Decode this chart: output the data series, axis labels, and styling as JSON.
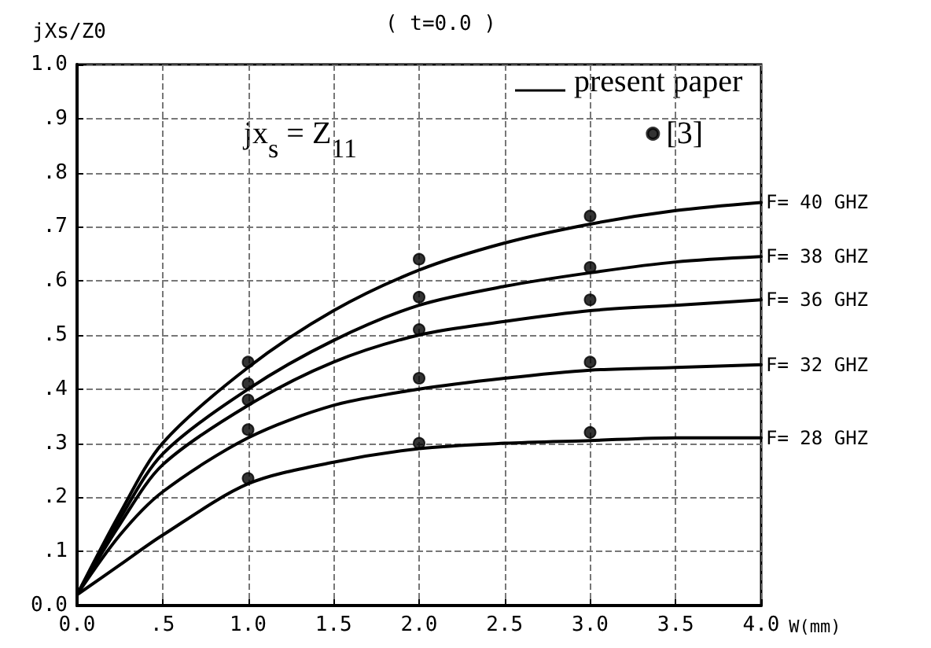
{
  "chart_data": {
    "type": "line",
    "title": "( t=0.0 )",
    "xlabel": "W(mm)",
    "ylabel": "jXs/Z0",
    "annotations": [
      "present paper",
      "jx$_{s}$ = Z$_{11}$"
    ],
    "x": [
      0,
      0.25,
      0.5,
      1,
      1.5,
      2,
      2.5,
      3,
      3.5,
      4
    ],
    "xlim": [
      0,
      4
    ],
    "ylim": [
      0,
      1
    ],
    "xticks": [
      {
        "value": 0,
        "label": "0.0"
      },
      {
        "value": 0.5,
        "label": ".5"
      },
      {
        "value": 1,
        "label": "1.0"
      },
      {
        "value": 1.5,
        "label": "1.5"
      },
      {
        "value": 2,
        "label": "2.0"
      },
      {
        "value": 2.5,
        "label": "2.5"
      },
      {
        "value": 3,
        "label": "3.0"
      },
      {
        "value": 3.5,
        "label": "3.5"
      },
      {
        "value": 4,
        "label": "4.0"
      }
    ],
    "yticks": [
      {
        "value": 0,
        "label": "0.0"
      },
      {
        "value": 0.1,
        "label": ".1"
      },
      {
        "value": 0.2,
        "label": ".2"
      },
      {
        "value": 0.3,
        "label": ".3"
      },
      {
        "value": 0.4,
        "label": ".4"
      },
      {
        "value": 0.5,
        "label": ".5"
      },
      {
        "value": 0.6,
        "label": ".6"
      },
      {
        "value": 0.7,
        "label": ".7"
      },
      {
        "value": 0.8,
        "label": ".8"
      },
      {
        "value": 0.9,
        "label": ".9"
      },
      {
        "value": 1,
        "label": "1.0"
      }
    ],
    "grid": true,
    "legend": "top right",
    "marker": "none",
    "series": [
      {
        "name": "F= 40 GHZ",
        "color": "#000000",
        "values": [
          0.02,
          0.17,
          0.3,
          0.44,
          0.545,
          0.62,
          0.67,
          0.705,
          0.73,
          0.745
        ]
      },
      {
        "name": "F= 38 GHZ",
        "color": "#000000",
        "values": [
          0.02,
          0.16,
          0.28,
          0.4,
          0.49,
          0.555,
          0.59,
          0.615,
          0.635,
          0.645
        ]
      },
      {
        "name": "F= 36 GHZ",
        "color": "#000000",
        "values": [
          0.02,
          0.15,
          0.26,
          0.37,
          0.45,
          0.5,
          0.525,
          0.545,
          0.555,
          0.565
        ]
      },
      {
        "name": "F= 32 GHZ",
        "color": "#000000",
        "values": [
          0.02,
          0.13,
          0.21,
          0.31,
          0.37,
          0.4,
          0.42,
          0.435,
          0.44,
          0.445
        ]
      },
      {
        "name": "F= 28 GHZ",
        "color": "#000000",
        "values": [
          0.02,
          0.075,
          0.13,
          0.225,
          0.265,
          0.29,
          0.3,
          0.305,
          0.31,
          0.31
        ]
      },
      {
        "name": "[3]",
        "type": "scatter",
        "marker": "circle",
        "color": "#000000",
        "x": [
          1,
          1,
          1,
          1,
          1,
          2,
          2,
          2,
          2,
          2,
          3,
          3,
          3,
          3,
          3
        ],
        "values": [
          0.45,
          0.41,
          0.38,
          0.325,
          0.235,
          0.64,
          0.57,
          0.51,
          0.42,
          0.3,
          0.72,
          0.625,
          0.565,
          0.45,
          0.32
        ]
      }
    ]
  }
}
